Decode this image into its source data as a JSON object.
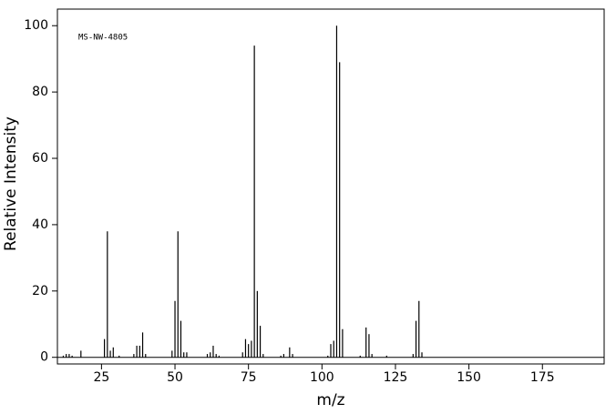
{
  "chart_data": {
    "type": "stem",
    "annotation": "MS-NW-4805",
    "xlabel": "m/z",
    "ylabel": "Relative Intensity",
    "x": [
      12,
      13,
      14,
      15,
      18,
      26,
      27,
      28,
      29,
      31,
      36,
      37,
      38,
      39,
      40,
      49,
      50,
      51,
      52,
      53,
      54,
      61,
      62,
      63,
      64,
      65,
      73,
      74,
      75,
      76,
      77,
      78,
      79,
      80,
      86,
      87,
      89,
      90,
      102,
      103,
      104,
      105,
      106,
      107,
      113,
      115,
      116,
      117,
      122,
      131,
      132,
      133,
      134
    ],
    "values": [
      0.5,
      1,
      1,
      0.5,
      2,
      5.5,
      38,
      2,
      3,
      0.5,
      1,
      3.5,
      3.5,
      7.5,
      1,
      2,
      17,
      38,
      11,
      1.5,
      1.5,
      1,
      1.5,
      3.5,
      1,
      0.5,
      1.5,
      5.5,
      4,
      5,
      94,
      20,
      9.5,
      1,
      0.5,
      1,
      3,
      1,
      0.5,
      4,
      5,
      100,
      89,
      8.5,
      0.5,
      9,
      7,
      1,
      0.5,
      1,
      11,
      17,
      1.5
    ],
    "color": "#000000",
    "xlim": [
      10,
      196
    ],
    "ylim": [
      -2,
      105
    ],
    "xticks": [
      25,
      50,
      75,
      100,
      125,
      150,
      175
    ],
    "yticks": [
      0,
      20,
      40,
      60,
      80,
      100
    ]
  }
}
